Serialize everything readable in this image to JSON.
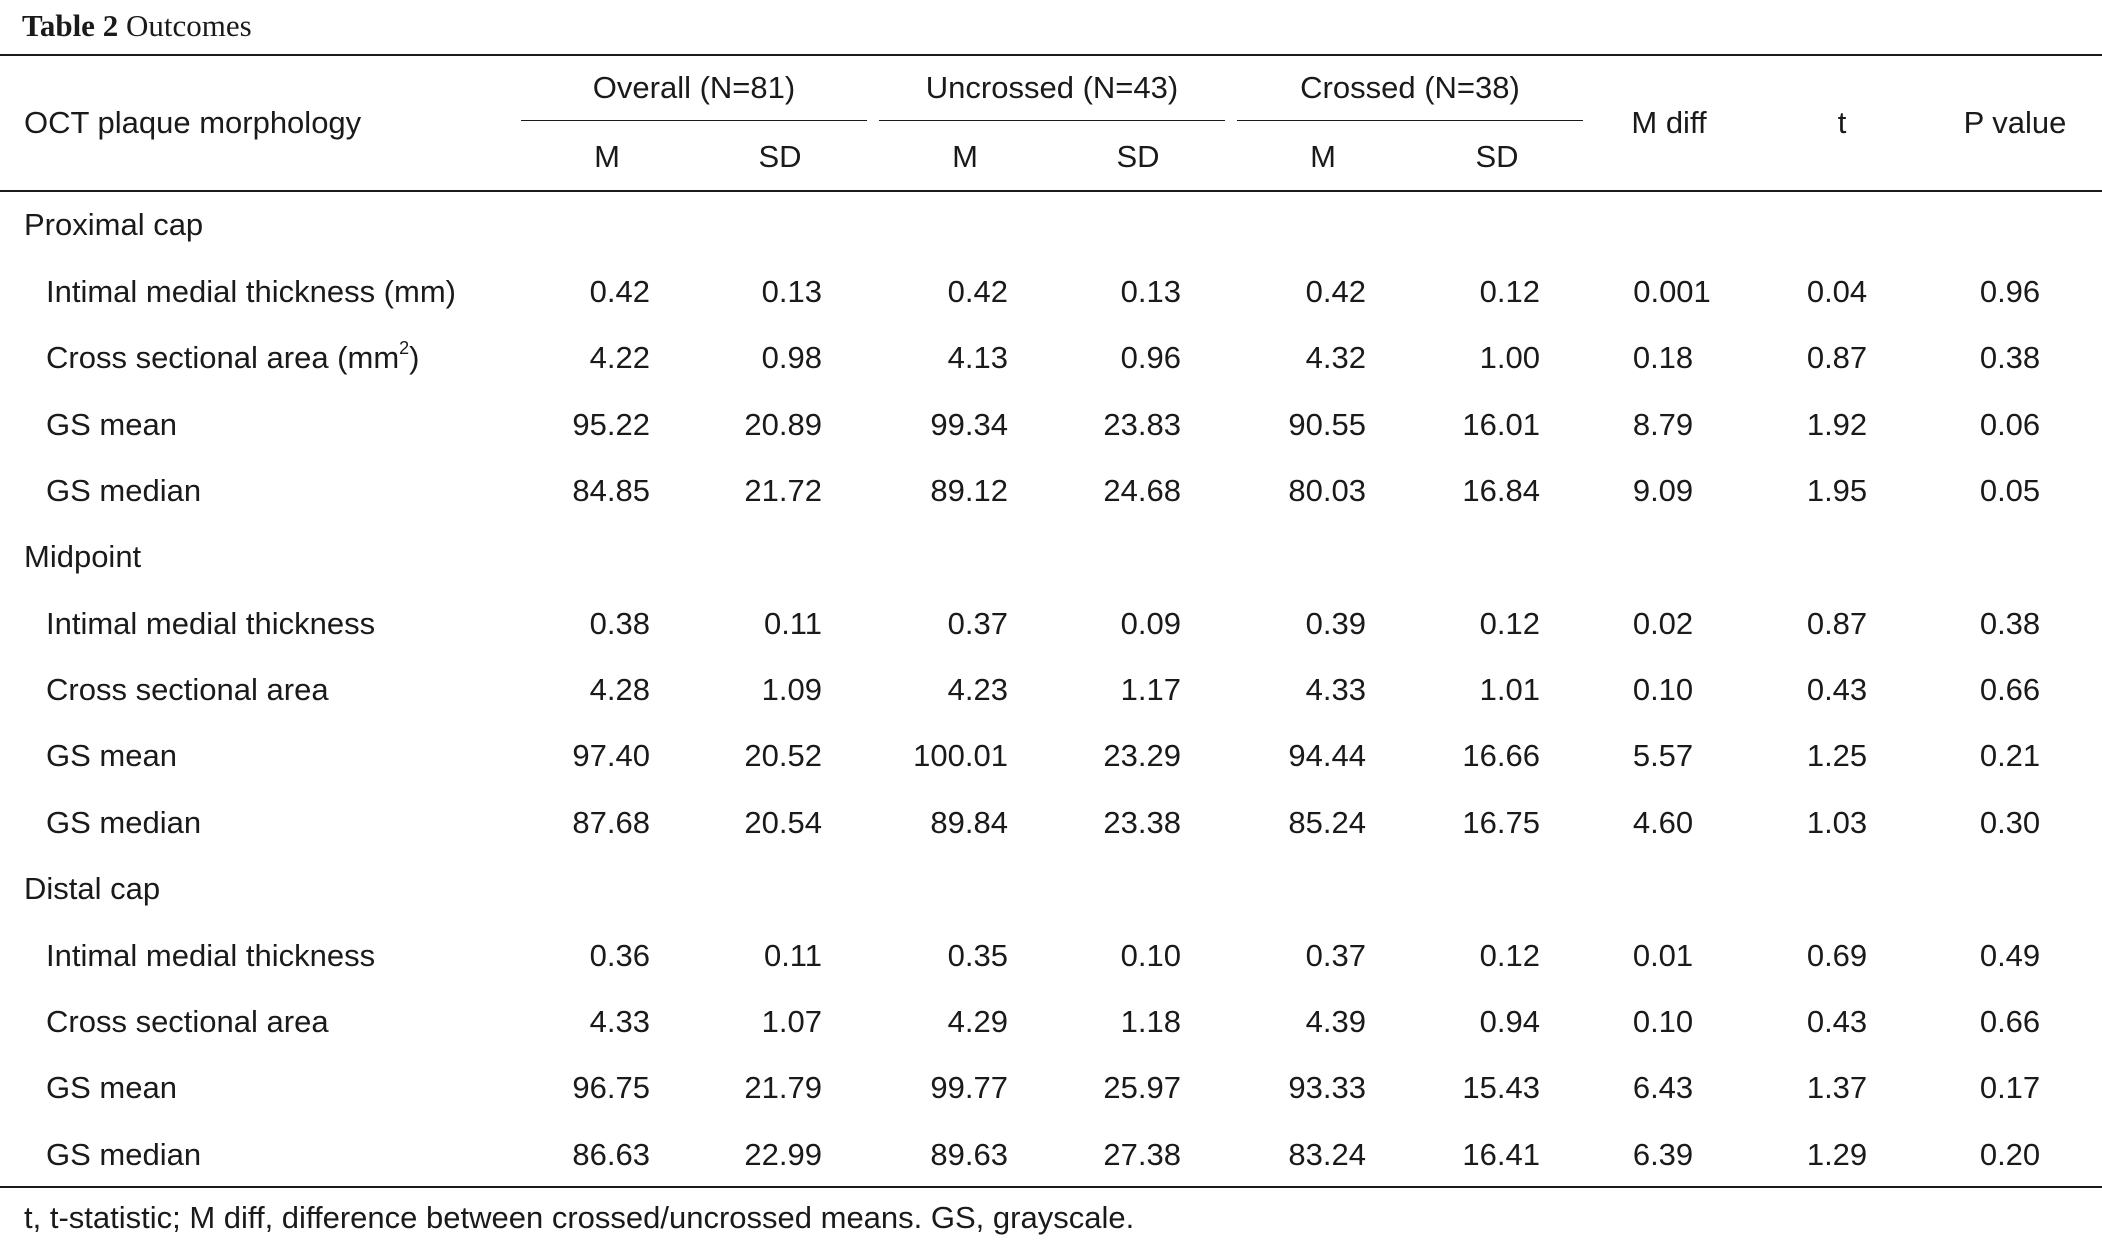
{
  "caption": {
    "label": "Table 2",
    "title": "Outcomes"
  },
  "header": {
    "row_label": "OCT plaque morphology",
    "groups": [
      "Overall (N=81)",
      "Uncrossed (N=43)",
      "Crossed (N=38)"
    ],
    "sub": [
      "M",
      "SD"
    ],
    "extra": [
      "M diff",
      "t",
      "P value"
    ]
  },
  "sections": [
    {
      "title": "Proximal cap",
      "rows": [
        {
          "label": "Intimal medial thickness (mm)",
          "values": [
            "0.42",
            "0.13",
            "0.42",
            "0.13",
            "0.42",
            "0.12",
            "0.001",
            "0.04",
            "0.96"
          ]
        },
        {
          "label": "Cross sectional area (mm",
          "sup": "2",
          "label_end": ")",
          "values": [
            "4.22",
            "0.98",
            "4.13",
            "0.96",
            "4.32",
            "1.00",
            "0.18",
            "0.87",
            "0.38"
          ]
        },
        {
          "label": "GS mean",
          "values": [
            "95.22",
            "20.89",
            "99.34",
            "23.83",
            "90.55",
            "16.01",
            "8.79",
            "1.92",
            "0.06"
          ]
        },
        {
          "label": "GS median",
          "values": [
            "84.85",
            "21.72",
            "89.12",
            "24.68",
            "80.03",
            "16.84",
            "9.09",
            "1.95",
            "0.05"
          ]
        }
      ]
    },
    {
      "title": "Midpoint",
      "rows": [
        {
          "label": "Intimal medial thickness",
          "values": [
            "0.38",
            "0.11",
            "0.37",
            "0.09",
            "0.39",
            "0.12",
            "0.02",
            "0.87",
            "0.38"
          ]
        },
        {
          "label": "Cross sectional area",
          "values": [
            "4.28",
            "1.09",
            "4.23",
            "1.17",
            "4.33",
            "1.01",
            "0.10",
            "0.43",
            "0.66"
          ]
        },
        {
          "label": "GS mean",
          "values": [
            "97.40",
            "20.52",
            "100.01",
            "23.29",
            "94.44",
            "16.66",
            "5.57",
            "1.25",
            "0.21"
          ]
        },
        {
          "label": "GS median",
          "values": [
            "87.68",
            "20.54",
            "89.84",
            "23.38",
            "85.24",
            "16.75",
            "4.60",
            "1.03",
            "0.30"
          ]
        }
      ]
    },
    {
      "title": "Distal cap",
      "rows": [
        {
          "label": "Intimal medial thickness",
          "values": [
            "0.36",
            "0.11",
            "0.35",
            "0.10",
            "0.37",
            "0.12",
            "0.01",
            "0.69",
            "0.49"
          ]
        },
        {
          "label": "Cross sectional area",
          "values": [
            "4.33",
            "1.07",
            "4.29",
            "1.18",
            "4.39",
            "0.94",
            "0.10",
            "0.43",
            "0.66"
          ]
        },
        {
          "label": "GS mean",
          "values": [
            "96.75",
            "21.79",
            "99.77",
            "25.97",
            "93.33",
            "15.43",
            "6.43",
            "1.37",
            "0.17"
          ]
        },
        {
          "label": "GS median",
          "values": [
            "86.63",
            "22.99",
            "89.63",
            "27.38",
            "83.24",
            "16.41",
            "6.39",
            "1.29",
            "0.20"
          ]
        }
      ]
    }
  ],
  "footnote": "t, t-statistic; M diff, difference between crossed/uncrossed means. GS, grayscale."
}
